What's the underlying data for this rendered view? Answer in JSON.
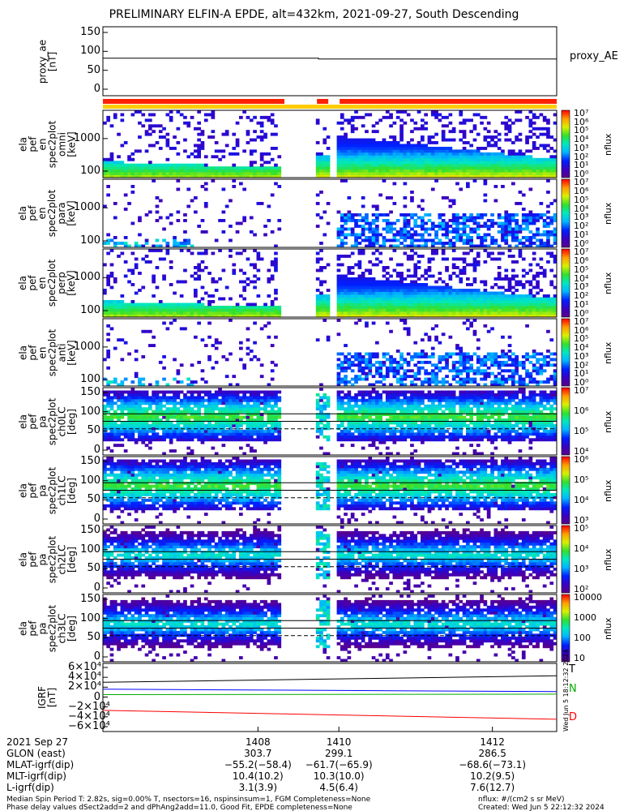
{
  "title": "PRELIMINARY ELFIN-A EPDE, alt=432km, 2021-09-27, South Descending",
  "panels": [
    {
      "id": "p0",
      "ylabel": [
        "proxy_ae",
        "[nT]"
      ],
      "ticks": [
        "150",
        "100",
        "50",
        "0"
      ],
      "right_label": "proxy_AE"
    },
    {
      "id": "p1",
      "ylabel": [
        "ela",
        "pef",
        "en",
        "spec2plot",
        "omni",
        "[keV]"
      ],
      "ticks": [
        "1000",
        "100"
      ],
      "cbticks": [
        "10⁷",
        "10⁶",
        "10⁵",
        "10⁴",
        "10³",
        "10²",
        "10¹",
        "10⁰"
      ],
      "cblabel": "nflux"
    },
    {
      "id": "p2",
      "ylabel": [
        "ela",
        "pef",
        "en",
        "spec2plot",
        "para",
        "[keV]"
      ],
      "ticks": [
        "1000",
        "100"
      ],
      "cbticks": [
        "10⁷",
        "10⁶",
        "10⁵",
        "10⁴",
        "10³",
        "10²",
        "10¹",
        "10⁰"
      ],
      "cblabel": "nflux"
    },
    {
      "id": "p3",
      "ylabel": [
        "ela",
        "pef",
        "en",
        "spec2plot",
        "perp",
        "[keV]"
      ],
      "ticks": [
        "1000",
        "100"
      ],
      "cbticks": [
        "10⁷",
        "10⁶",
        "10⁵",
        "10⁴",
        "10³",
        "10²",
        "10¹",
        "10⁰"
      ],
      "cblabel": "nflux"
    },
    {
      "id": "p4",
      "ylabel": [
        "ela",
        "pef",
        "en",
        "spec2plot",
        "anti",
        "[keV]"
      ],
      "ticks": [
        "1000",
        "100"
      ],
      "cbticks": [
        "10⁷",
        "10⁶",
        "10⁵",
        "10⁴",
        "10³",
        "10²",
        "10¹",
        "10⁰"
      ],
      "cblabel": "nflux"
    },
    {
      "id": "p5",
      "ylabel": [
        "ela",
        "pef",
        "pa",
        "spec2plot",
        "ch0LC",
        "[deg]"
      ],
      "ticks": [
        "150",
        "100",
        "50",
        "0"
      ],
      "cbticks": [
        "10⁷",
        "10⁶",
        "10⁵",
        "10⁴"
      ],
      "cblabel": "nflux"
    },
    {
      "id": "p6",
      "ylabel": [
        "ela",
        "pef",
        "pa",
        "spec2plot",
        "ch1LC",
        "[deg]"
      ],
      "ticks": [
        "150",
        "100",
        "50",
        "0"
      ],
      "cbticks": [
        "10⁶",
        "10⁵",
        "10⁴",
        "10³"
      ],
      "cblabel": "nflux"
    },
    {
      "id": "p7",
      "ylabel": [
        "ela",
        "pef",
        "pa",
        "spec2plot",
        "ch2LC",
        "[deg]"
      ],
      "ticks": [
        "150",
        "100",
        "50",
        "0"
      ],
      "cbticks": [
        "10⁵",
        "10⁴",
        "10³",
        "10²"
      ],
      "cblabel": "nflux"
    },
    {
      "id": "p8",
      "ylabel": [
        "ela",
        "pef",
        "pa",
        "spec2plot",
        "ch3LC",
        "[deg]"
      ],
      "ticks": [
        "150",
        "100",
        "50",
        "0"
      ],
      "cbticks": [
        "10000",
        "1000",
        "100",
        "10"
      ],
      "cblabel": "nflux"
    },
    {
      "id": "p9",
      "ylabel": [
        "IGRF",
        "[nT]"
      ],
      "ticks": [
        "6×10⁴",
        "4×10⁴",
        "2×10⁴",
        "0",
        "−2×10⁴",
        "−4×10⁴",
        "−6×10⁴"
      ],
      "legend": [
        "T",
        "N",
        "D"
      ]
    }
  ],
  "chart_data": [
    {
      "type": "line",
      "panel": "proxy_ae",
      "ylabel": "proxy_ae [nT]",
      "ylim": [
        0,
        150
      ],
      "x_minutes": [
        0,
        28.5,
        28.5,
        60
      ],
      "y": [
        82,
        82,
        80,
        80
      ],
      "series": [
        {
          "name": "proxy_AE"
        }
      ]
    },
    {
      "type": "heatmap",
      "panel": "ela pef en spec2plot omni",
      "y_axis": "log",
      "ylim_keV": [
        63,
        7000
      ],
      "color_scale": "log",
      "crange": [
        1,
        10000000.0
      ],
      "colorbar_label": "nflux",
      "data_gaps_min": [
        [
          23.5,
          27.5
        ],
        [
          29.8,
          31.0
        ]
      ]
    },
    {
      "type": "heatmap",
      "panel": "ela pef en spec2plot para",
      "y_axis": "log",
      "ylim_keV": [
        63,
        7000
      ],
      "color_scale": "log",
      "crange": [
        1,
        10000000.0
      ],
      "colorbar_label": "nflux"
    },
    {
      "type": "heatmap",
      "panel": "ela pef en spec2plot perp",
      "y_axis": "log",
      "ylim_keV": [
        63,
        7000
      ],
      "color_scale": "log",
      "crange": [
        1,
        10000000.0
      ],
      "colorbar_label": "nflux"
    },
    {
      "type": "heatmap",
      "panel": "ela pef en spec2plot anti",
      "y_axis": "log",
      "ylim_keV": [
        63,
        7000
      ],
      "color_scale": "log",
      "crange": [
        1,
        10000000.0
      ],
      "colorbar_label": "nflux"
    },
    {
      "type": "heatmap",
      "panel": "ela pef pa spec2plot ch0LC",
      "ylim_deg": [
        0,
        180
      ],
      "color_scale": "log",
      "crange": [
        1000.0,
        10000000.0
      ],
      "colorbar_label": "nflux",
      "reference_lines_deg": [
        70,
        90,
        110
      ]
    },
    {
      "type": "heatmap",
      "panel": "ela pef pa spec2plot ch1LC",
      "ylim_deg": [
        0,
        180
      ],
      "color_scale": "log",
      "crange": [
        1000.0,
        1000000.0
      ],
      "colorbar_label": "nflux",
      "reference_lines_deg": [
        70,
        90,
        110
      ]
    },
    {
      "type": "heatmap",
      "panel": "ela pef pa spec2plot ch2LC",
      "ylim_deg": [
        0,
        180
      ],
      "color_scale": "log",
      "crange": [
        100.0,
        100000.0
      ],
      "colorbar_label": "nflux",
      "reference_lines_deg": [
        70,
        90,
        110
      ]
    },
    {
      "type": "heatmap",
      "panel": "ela pef pa spec2plot ch3LC",
      "ylim_deg": [
        0,
        180
      ],
      "color_scale": "log",
      "crange": [
        10,
        10000.0
      ],
      "colorbar_label": "nflux",
      "reference_lines_deg": [
        70,
        90,
        110
      ]
    },
    {
      "type": "line",
      "panel": "IGRF",
      "ylabel": "IGRF [nT]",
      "ylim": [
        -60000,
        60000
      ],
      "x_minutes": [
        0,
        60
      ],
      "series": [
        {
          "name": "T",
          "color": "#000000",
          "y": [
            30000,
            43000
          ]
        },
        {
          "name": "N",
          "color": "#0000ff",
          "y": [
            16000,
            11000
          ]
        },
        {
          "name": "D",
          "color": "#ff0000",
          "y": [
            -27000,
            -45000
          ]
        },
        {
          "color": "#00aa00",
          "y": [
            5000,
            6000
          ]
        }
      ]
    }
  ],
  "x_axis": {
    "row_labels": [
      "2021 Sep 27",
      "GLON (east)",
      "MLAT-igrf(dip)",
      "MLT-igrf(dip)",
      "L-igrf(dip)"
    ],
    "columns": [
      {
        "time": "1408",
        "glon": "303.7",
        "mlat": "−55.2(−58.4)",
        "mlt": "10.4(10.2)",
        "l": "3.1(3.9)"
      },
      {
        "time": "1410",
        "glon": "299.1",
        "mlat": "−61.7(−65.9)",
        "mlt": "10.3(10.0)",
        "l": "4.5(6.4)"
      },
      {
        "time": "1412",
        "glon": "286.5",
        "mlat": "−68.6(−73.1)",
        "mlt": "10.2(9.5)",
        "l": "7.6(12.7)"
      }
    ]
  },
  "footer": {
    "line1_left": "Median Spin Period T: 2.82s, sig=0.00% T, nsectors=16, nspinsinsum=1, FGM Completeness=None",
    "line2_left": "Phase delay values dSect2add=2 and dPhAng2add=11.0, Good Fit, EPDE completeness=None",
    "line1_right": "nflux: #/(cm2 s sr MeV)",
    "line2_right": "Created: Wed Jun  5 22:12:32 2024",
    "side_stamp": "Wed Jun  5 18:12:32 2024"
  },
  "colors": {
    "bar_red": "#ff2200",
    "bar_yellow": "#ffcc00"
  }
}
